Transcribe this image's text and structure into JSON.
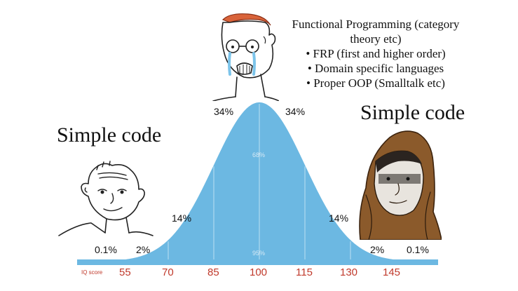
{
  "meme": {
    "left_caption": "Simple code",
    "right_caption": "Simple code",
    "middle_caption": [
      "Functional Programming (category",
      "theory etc)",
      "• FRP (first and higher order)",
      "• Domain specific languages",
      "• Proper OOP (Smalltalk etc)"
    ]
  },
  "chart_data": {
    "type": "area",
    "x_axis": {
      "label": "IQ score",
      "ticks": [
        "55",
        "70",
        "85",
        "100",
        "115",
        "130",
        "145"
      ]
    },
    "band_percentages": {
      "outer_left": "0.1%",
      "far_left": "2%",
      "left": "14%",
      "center_left": "34%",
      "center_right": "34%",
      "right": "14%",
      "far_right": "2%",
      "outer_right": "0.1%"
    },
    "interval_labels": {
      "one_sd": "68%",
      "two_sd": "95%"
    },
    "colors": {
      "curve_fill": "#6cb8e2",
      "axis_bar": "#6cb8e2",
      "tick_labels": "#c0392b"
    }
  },
  "characters": [
    {
      "name": "simpleton",
      "icon": "wojak-smiling-simpleton"
    },
    {
      "name": "crying-midwit",
      "icon": "wojak-crying-glasses"
    },
    {
      "name": "hooded-sage",
      "icon": "wojak-hooded-monk"
    }
  ]
}
